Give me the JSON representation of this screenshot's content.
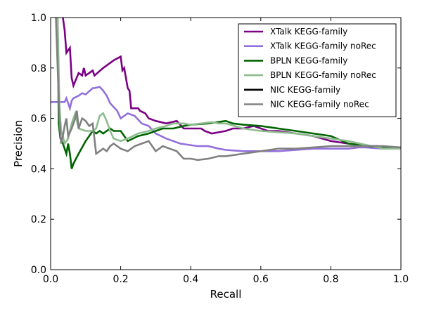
{
  "chart_data": {
    "type": "line",
    "xlabel": "Recall",
    "ylabel": "Precision",
    "xlim": [
      0.0,
      1.0
    ],
    "ylim": [
      0.0,
      1.0
    ],
    "xticks": [
      "0.0",
      "0.2",
      "0.4",
      "0.6",
      "0.8",
      "1.0"
    ],
    "yticks": [
      "0.0",
      "0.2",
      "0.4",
      "0.6",
      "0.8",
      "1.0"
    ],
    "grid": false,
    "legend_position": "top-right",
    "series": [
      {
        "name": "XTalk KEGG-family",
        "color": "#7b0085",
        "points": [
          [
            0.035,
            1.0
          ],
          [
            0.04,
            0.95
          ],
          [
            0.045,
            0.86
          ],
          [
            0.055,
            0.88
          ],
          [
            0.06,
            0.76
          ],
          [
            0.065,
            0.73
          ],
          [
            0.08,
            0.78
          ],
          [
            0.09,
            0.77
          ],
          [
            0.095,
            0.8
          ],
          [
            0.1,
            0.77
          ],
          [
            0.12,
            0.79
          ],
          [
            0.125,
            0.77
          ],
          [
            0.15,
            0.8
          ],
          [
            0.17,
            0.82
          ],
          [
            0.18,
            0.83
          ],
          [
            0.2,
            0.845
          ],
          [
            0.205,
            0.79
          ],
          [
            0.21,
            0.8
          ],
          [
            0.22,
            0.72
          ],
          [
            0.225,
            0.71
          ],
          [
            0.23,
            0.64
          ],
          [
            0.25,
            0.64
          ],
          [
            0.255,
            0.63
          ],
          [
            0.27,
            0.62
          ],
          [
            0.28,
            0.6
          ],
          [
            0.3,
            0.59
          ],
          [
            0.33,
            0.58
          ],
          [
            0.36,
            0.59
          ],
          [
            0.38,
            0.56
          ],
          [
            0.4,
            0.56
          ],
          [
            0.43,
            0.56
          ],
          [
            0.44,
            0.55
          ],
          [
            0.46,
            0.54
          ],
          [
            0.5,
            0.55
          ],
          [
            0.52,
            0.56
          ],
          [
            0.55,
            0.56
          ],
          [
            0.58,
            0.57
          ],
          [
            0.62,
            0.55
          ],
          [
            0.65,
            0.55
          ],
          [
            0.7,
            0.54
          ],
          [
            0.75,
            0.53
          ],
          [
            0.8,
            0.51
          ],
          [
            0.85,
            0.5
          ],
          [
            0.88,
            0.495
          ],
          [
            0.9,
            0.49
          ],
          [
            0.93,
            0.49
          ],
          [
            0.96,
            0.485
          ],
          [
            1.0,
            0.485
          ]
        ]
      },
      {
        "name": "XTalk KEGG-family noRec",
        "color": "#9370db",
        "points": [
          [
            0.0,
            0.665
          ],
          [
            0.04,
            0.665
          ],
          [
            0.045,
            0.68
          ],
          [
            0.055,
            0.64
          ],
          [
            0.06,
            0.67
          ],
          [
            0.065,
            0.68
          ],
          [
            0.08,
            0.69
          ],
          [
            0.09,
            0.7
          ],
          [
            0.1,
            0.695
          ],
          [
            0.12,
            0.72
          ],
          [
            0.125,
            0.72
          ],
          [
            0.14,
            0.725
          ],
          [
            0.15,
            0.71
          ],
          [
            0.16,
            0.69
          ],
          [
            0.17,
            0.66
          ],
          [
            0.19,
            0.63
          ],
          [
            0.2,
            0.6
          ],
          [
            0.22,
            0.62
          ],
          [
            0.24,
            0.61
          ],
          [
            0.26,
            0.58
          ],
          [
            0.28,
            0.57
          ],
          [
            0.3,
            0.54
          ],
          [
            0.33,
            0.52
          ],
          [
            0.37,
            0.5
          ],
          [
            0.42,
            0.49
          ],
          [
            0.45,
            0.49
          ],
          [
            0.48,
            0.48
          ],
          [
            0.5,
            0.475
          ],
          [
            0.55,
            0.47
          ],
          [
            0.6,
            0.47
          ],
          [
            0.65,
            0.47
          ],
          [
            0.7,
            0.475
          ],
          [
            0.75,
            0.48
          ],
          [
            0.8,
            0.48
          ],
          [
            0.85,
            0.48
          ],
          [
            0.88,
            0.485
          ],
          [
            0.9,
            0.485
          ],
          [
            0.95,
            0.48
          ],
          [
            1.0,
            0.48
          ]
        ]
      },
      {
        "name": "BPLN KEGG-family",
        "color": "#006400",
        "points": [
          [
            0.02,
            1.0
          ],
          [
            0.023,
            0.58
          ],
          [
            0.028,
            0.52
          ],
          [
            0.035,
            0.5
          ],
          [
            0.04,
            0.48
          ],
          [
            0.045,
            0.46
          ],
          [
            0.05,
            0.5
          ],
          [
            0.055,
            0.46
          ],
          [
            0.06,
            0.4
          ],
          [
            0.065,
            0.42
          ],
          [
            0.08,
            0.46
          ],
          [
            0.1,
            0.51
          ],
          [
            0.11,
            0.53
          ],
          [
            0.12,
            0.55
          ],
          [
            0.13,
            0.54
          ],
          [
            0.14,
            0.55
          ],
          [
            0.15,
            0.54
          ],
          [
            0.16,
            0.55
          ],
          [
            0.17,
            0.56
          ],
          [
            0.18,
            0.55
          ],
          [
            0.2,
            0.55
          ],
          [
            0.22,
            0.51
          ],
          [
            0.25,
            0.53
          ],
          [
            0.28,
            0.54
          ],
          [
            0.3,
            0.55
          ],
          [
            0.32,
            0.56
          ],
          [
            0.35,
            0.56
          ],
          [
            0.38,
            0.57
          ],
          [
            0.4,
            0.575
          ],
          [
            0.45,
            0.58
          ],
          [
            0.5,
            0.59
          ],
          [
            0.52,
            0.58
          ],
          [
            0.55,
            0.575
          ],
          [
            0.6,
            0.57
          ],
          [
            0.65,
            0.56
          ],
          [
            0.7,
            0.55
          ],
          [
            0.75,
            0.54
          ],
          [
            0.8,
            0.53
          ],
          [
            0.85,
            0.5
          ],
          [
            0.88,
            0.495
          ],
          [
            0.9,
            0.49
          ],
          [
            0.95,
            0.485
          ],
          [
            1.0,
            0.485
          ]
        ]
      },
      {
        "name": "BPLN KEGG-family noRec",
        "color": "#8fbc8f",
        "points": [
          [
            0.02,
            1.0
          ],
          [
            0.025,
            0.65
          ],
          [
            0.03,
            0.55
          ],
          [
            0.035,
            0.53
          ],
          [
            0.04,
            0.5
          ],
          [
            0.05,
            0.52
          ],
          [
            0.06,
            0.58
          ],
          [
            0.07,
            0.62
          ],
          [
            0.08,
            0.56
          ],
          [
            0.1,
            0.55
          ],
          [
            0.12,
            0.55
          ],
          [
            0.13,
            0.56
          ],
          [
            0.14,
            0.61
          ],
          [
            0.15,
            0.62
          ],
          [
            0.16,
            0.59
          ],
          [
            0.17,
            0.55
          ],
          [
            0.18,
            0.52
          ],
          [
            0.2,
            0.51
          ],
          [
            0.22,
            0.52
          ],
          [
            0.25,
            0.54
          ],
          [
            0.28,
            0.55
          ],
          [
            0.3,
            0.56
          ],
          [
            0.33,
            0.57
          ],
          [
            0.35,
            0.58
          ],
          [
            0.38,
            0.58
          ],
          [
            0.4,
            0.575
          ],
          [
            0.43,
            0.58
          ],
          [
            0.46,
            0.585
          ],
          [
            0.48,
            0.58
          ],
          [
            0.5,
            0.58
          ],
          [
            0.55,
            0.56
          ],
          [
            0.6,
            0.55
          ],
          [
            0.65,
            0.545
          ],
          [
            0.7,
            0.54
          ],
          [
            0.75,
            0.53
          ],
          [
            0.8,
            0.52
          ],
          [
            0.85,
            0.51
          ],
          [
            0.9,
            0.495
          ],
          [
            0.95,
            0.48
          ],
          [
            1.0,
            0.48
          ]
        ]
      },
      {
        "name": "NIC KEGG-family",
        "color": "#000000",
        "points": []
      },
      {
        "name": "NIC KEGG-family noRec",
        "color": "#808080",
        "points": [
          [
            0.015,
            1.0
          ],
          [
            0.02,
            0.8
          ],
          [
            0.025,
            0.6
          ],
          [
            0.03,
            0.5
          ],
          [
            0.035,
            0.53
          ],
          [
            0.04,
            0.57
          ],
          [
            0.045,
            0.6
          ],
          [
            0.05,
            0.53
          ],
          [
            0.06,
            0.56
          ],
          [
            0.07,
            0.6
          ],
          [
            0.075,
            0.63
          ],
          [
            0.08,
            0.56
          ],
          [
            0.09,
            0.6
          ],
          [
            0.1,
            0.59
          ],
          [
            0.11,
            0.57
          ],
          [
            0.12,
            0.58
          ],
          [
            0.13,
            0.46
          ],
          [
            0.14,
            0.47
          ],
          [
            0.15,
            0.48
          ],
          [
            0.16,
            0.47
          ],
          [
            0.17,
            0.49
          ],
          [
            0.18,
            0.5
          ],
          [
            0.2,
            0.48
          ],
          [
            0.22,
            0.47
          ],
          [
            0.24,
            0.49
          ],
          [
            0.26,
            0.5
          ],
          [
            0.28,
            0.51
          ],
          [
            0.3,
            0.47
          ],
          [
            0.32,
            0.49
          ],
          [
            0.34,
            0.48
          ],
          [
            0.36,
            0.47
          ],
          [
            0.38,
            0.44
          ],
          [
            0.4,
            0.44
          ],
          [
            0.42,
            0.435
          ],
          [
            0.45,
            0.44
          ],
          [
            0.48,
            0.45
          ],
          [
            0.5,
            0.45
          ],
          [
            0.55,
            0.46
          ],
          [
            0.6,
            0.47
          ],
          [
            0.65,
            0.48
          ],
          [
            0.7,
            0.48
          ],
          [
            0.75,
            0.485
          ],
          [
            0.8,
            0.49
          ],
          [
            0.85,
            0.49
          ],
          [
            0.9,
            0.49
          ],
          [
            0.95,
            0.49
          ],
          [
            1.0,
            0.485
          ]
        ]
      }
    ]
  }
}
